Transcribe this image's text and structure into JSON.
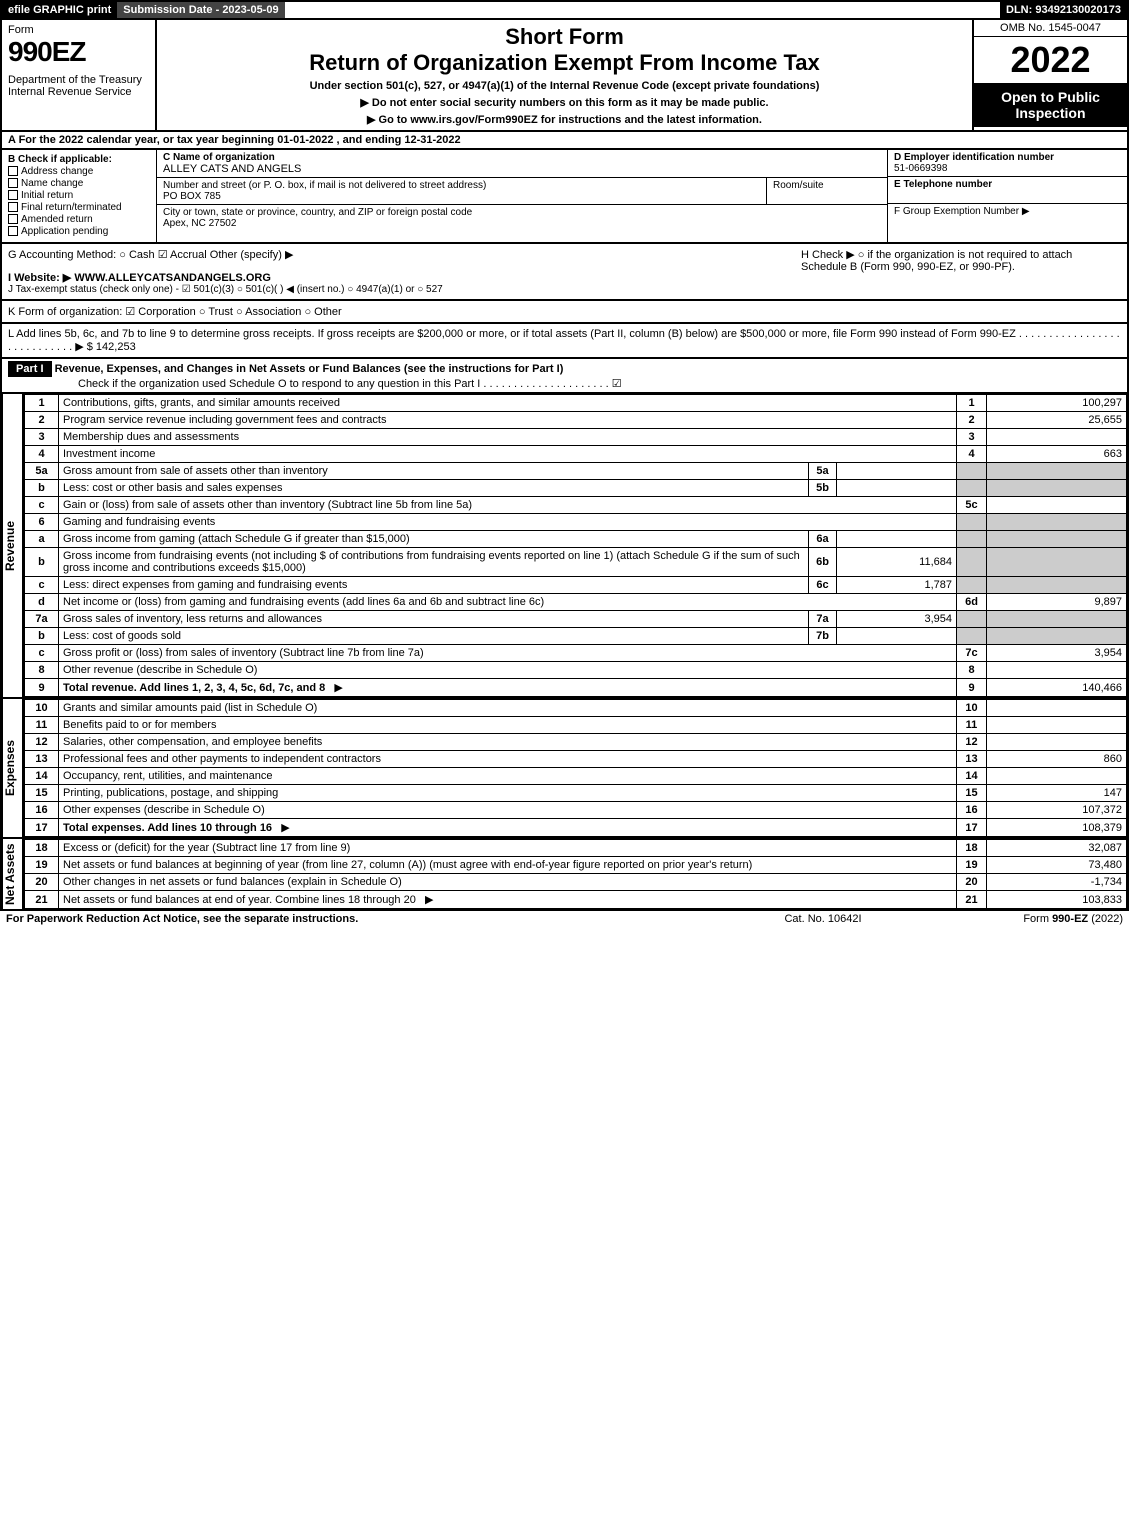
{
  "topbar": {
    "efile": "efile GRAPHIC print",
    "submission": "Submission Date - 2023-05-09",
    "dln": "DLN: 93492130020173"
  },
  "header": {
    "form_label": "Form",
    "form_number": "990EZ",
    "dept": "Department of the Treasury\nInternal Revenue Service",
    "short_form": "Short Form",
    "title": "Return of Organization Exempt From Income Tax",
    "subtitle": "Under section 501(c), 527, or 4947(a)(1) of the Internal Revenue Code (except private foundations)",
    "note1": "▶ Do not enter social security numbers on this form as it may be made public.",
    "note2": "▶ Go to www.irs.gov/Form990EZ for instructions and the latest information.",
    "omb": "OMB No. 1545-0047",
    "year": "2022",
    "open": "Open to Public Inspection"
  },
  "lineA": "A  For the 2022 calendar year, or tax year beginning 01-01-2022 , and ending 12-31-2022",
  "boxB": {
    "hdr": "B  Check if applicable:",
    "opts": [
      "Address change",
      "Name change",
      "Initial return",
      "Final return/terminated",
      "Amended return",
      "Application pending"
    ]
  },
  "boxC": {
    "name_lbl": "C Name of organization",
    "name": "ALLEY CATS AND ANGELS",
    "addr_lbl": "Number and street (or P. O. box, if mail is not delivered to street address)",
    "addr": "PO BOX 785",
    "room_lbl": "Room/suite",
    "city_lbl": "City or town, state or province, country, and ZIP or foreign postal code",
    "city": "Apex, NC  27502"
  },
  "boxD": {
    "ein_lbl": "D Employer identification number",
    "ein": "51-0669398",
    "tel_lbl": "E Telephone number",
    "grp_lbl": "F Group Exemption Number  ▶"
  },
  "lineG": "G Accounting Method:   ○ Cash   ☑ Accrual   Other (specify) ▶",
  "lineH": "H   Check ▶  ○  if the organization is not required to attach Schedule B (Form 990, 990-EZ, or 990-PF).",
  "lineI": "I Website: ▶ WWW.ALLEYCATSANDANGELS.ORG",
  "lineJ": "J Tax-exempt status (check only one) - ☑ 501(c)(3) ○ 501(c)(  ) ◀ (insert no.) ○ 4947(a)(1) or ○ 527",
  "lineK": "K Form of organization:  ☑ Corporation  ○ Trust  ○ Association  ○ Other",
  "lineL": "L Add lines 5b, 6c, and 7b to line 9 to determine gross receipts. If gross receipts are $200,000 or more, or if total assets (Part II, column (B) below) are $500,000 or more, file Form 990 instead of Form 990-EZ  . . . . . . . . . . . . . . . . . . . . . . . . . . . .  ▶ $ 142,253",
  "partI": {
    "label": "Part I",
    "title": "Revenue, Expenses, and Changes in Net Assets or Fund Balances (see the instructions for Part I)",
    "checknote": "Check if the organization used Schedule O to respond to any question in this Part I . . . . . . . . . . . . . . . . . . . . .  ☑"
  },
  "sections": {
    "revenue": "Revenue",
    "expenses": "Expenses",
    "netassets": "Net Assets"
  },
  "rows": [
    {
      "n": "1",
      "d": "Contributions, gifts, grants, and similar amounts received",
      "ln": "1",
      "v": "100,297"
    },
    {
      "n": "2",
      "d": "Program service revenue including government fees and contracts",
      "ln": "2",
      "v": "25,655"
    },
    {
      "n": "3",
      "d": "Membership dues and assessments",
      "ln": "3",
      "v": ""
    },
    {
      "n": "4",
      "d": "Investment income",
      "ln": "4",
      "v": "663"
    },
    {
      "n": "5a",
      "d": "Gross amount from sale of assets other than inventory",
      "sub": "5a",
      "sv": "",
      "grey": true
    },
    {
      "n": "b",
      "d": "Less: cost or other basis and sales expenses",
      "sub": "5b",
      "sv": "",
      "grey": true
    },
    {
      "n": "c",
      "d": "Gain or (loss) from sale of assets other than inventory (Subtract line 5b from line 5a)",
      "ln": "5c",
      "v": ""
    },
    {
      "n": "6",
      "d": "Gaming and fundraising events",
      "grey": true
    },
    {
      "n": "a",
      "d": "Gross income from gaming (attach Schedule G if greater than $15,000)",
      "sub": "6a",
      "sv": "",
      "grey": true
    },
    {
      "n": "b",
      "d": "Gross income from fundraising events (not including $                     of contributions from fundraising events reported on line 1) (attach Schedule G if the sum of such gross income and contributions exceeds $15,000)",
      "sub": "6b",
      "sv": "11,684",
      "grey": true
    },
    {
      "n": "c",
      "d": "Less: direct expenses from gaming and fundraising events",
      "sub": "6c",
      "sv": "1,787",
      "grey": true
    },
    {
      "n": "d",
      "d": "Net income or (loss) from gaming and fundraising events (add lines 6a and 6b and subtract line 6c)",
      "ln": "6d",
      "v": "9,897"
    },
    {
      "n": "7a",
      "d": "Gross sales of inventory, less returns and allowances",
      "sub": "7a",
      "sv": "3,954",
      "grey": true
    },
    {
      "n": "b",
      "d": "Less: cost of goods sold",
      "sub": "7b",
      "sv": "",
      "grey": true
    },
    {
      "n": "c",
      "d": "Gross profit or (loss) from sales of inventory (Subtract line 7b from line 7a)",
      "ln": "7c",
      "v": "3,954"
    },
    {
      "n": "8",
      "d": "Other revenue (describe in Schedule O)",
      "ln": "8",
      "v": ""
    },
    {
      "n": "9",
      "d": "Total revenue. Add lines 1, 2, 3, 4, 5c, 6d, 7c, and 8",
      "ln": "9",
      "v": "140,466",
      "bold": true,
      "arrow": true
    }
  ],
  "exp_rows": [
    {
      "n": "10",
      "d": "Grants and similar amounts paid (list in Schedule O)",
      "ln": "10",
      "v": ""
    },
    {
      "n": "11",
      "d": "Benefits paid to or for members",
      "ln": "11",
      "v": ""
    },
    {
      "n": "12",
      "d": "Salaries, other compensation, and employee benefits",
      "ln": "12",
      "v": ""
    },
    {
      "n": "13",
      "d": "Professional fees and other payments to independent contractors",
      "ln": "13",
      "v": "860"
    },
    {
      "n": "14",
      "d": "Occupancy, rent, utilities, and maintenance",
      "ln": "14",
      "v": ""
    },
    {
      "n": "15",
      "d": "Printing, publications, postage, and shipping",
      "ln": "15",
      "v": "147"
    },
    {
      "n": "16",
      "d": "Other expenses (describe in Schedule O)",
      "ln": "16",
      "v": "107,372"
    },
    {
      "n": "17",
      "d": "Total expenses. Add lines 10 through 16",
      "ln": "17",
      "v": "108,379",
      "bold": true,
      "arrow": true
    }
  ],
  "na_rows": [
    {
      "n": "18",
      "d": "Excess or (deficit) for the year (Subtract line 17 from line 9)",
      "ln": "18",
      "v": "32,087"
    },
    {
      "n": "19",
      "d": "Net assets or fund balances at beginning of year (from line 27, column (A)) (must agree with end-of-year figure reported on prior year's return)",
      "ln": "19",
      "v": "73,480"
    },
    {
      "n": "20",
      "d": "Other changes in net assets or fund balances (explain in Schedule O)",
      "ln": "20",
      "v": "-1,734"
    },
    {
      "n": "21",
      "d": "Net assets or fund balances at end of year. Combine lines 18 through 20",
      "ln": "21",
      "v": "103,833",
      "arrow": true
    }
  ],
  "footer": {
    "left": "For Paperwork Reduction Act Notice, see the separate instructions.",
    "mid": "Cat. No. 10642I",
    "right": "Form 990-EZ (2022)"
  }
}
